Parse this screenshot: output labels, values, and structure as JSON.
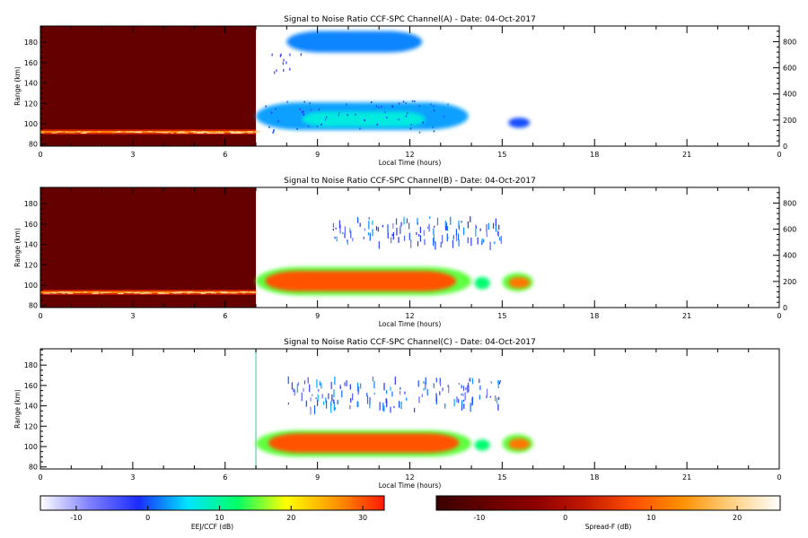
{
  "chart_data": [
    {
      "type": "heatmap",
      "title": "Signal to Noise Ratio CCF-SPC Channel(A) - Date: 04-Oct-2017",
      "xlabel": "Local Time (hours)",
      "ylabel": "Range (km)",
      "xlim": [
        0,
        24
      ],
      "ylim": [
        78,
        196
      ],
      "xticks": [
        "0",
        "3",
        "6",
        "9",
        "12",
        "15",
        "18",
        "21",
        "0"
      ],
      "yticks": [
        "80",
        "100",
        "120",
        "140",
        "160",
        "180"
      ],
      "right_axis": {
        "ylim": [
          0,
          920
        ],
        "ticks": [
          "0",
          "200",
          "400",
          "600",
          "800"
        ]
      },
      "spread_f_background": {
        "x_start": 0,
        "x_end": 7.0,
        "y_start": 78,
        "y_end": 196
      },
      "spread_f_layer": {
        "x_start": 0,
        "x_end": 7.0,
        "range_km": 92,
        "snr_db": 12
      },
      "regions": [
        {
          "x_start": 8.0,
          "x_end": 12.4,
          "y_low": 170,
          "y_high": 191,
          "snr_db": 2
        },
        {
          "x_start": 7.0,
          "x_end": 13.9,
          "y_low": 94,
          "y_high": 121,
          "snr_db": 3
        },
        {
          "x_start": 8.5,
          "x_end": 12.5,
          "y_low": 97,
          "y_high": 112,
          "snr_db": 7
        },
        {
          "x_start": 15.2,
          "x_end": 15.9,
          "y_low": 96,
          "y_high": 106,
          "snr_db": 0
        }
      ]
    },
    {
      "type": "heatmap",
      "title": "Signal to Noise Ratio CCF-SPC Channel(B) - Date: 04-Oct-2017",
      "xlabel": "Local Time (hours)",
      "ylabel": "Range (km)",
      "xlim": [
        0,
        24
      ],
      "ylim": [
        78,
        196
      ],
      "xticks": [
        "0",
        "3",
        "6",
        "9",
        "12",
        "15",
        "18",
        "21",
        "0"
      ],
      "yticks": [
        "80",
        "100",
        "120",
        "140",
        "160",
        "180"
      ],
      "right_axis": {
        "ylim": [
          0,
          920
        ],
        "ticks": [
          "0",
          "200",
          "400",
          "600",
          "800"
        ]
      },
      "spread_f_background": {
        "x_start": 0,
        "x_end": 7.0,
        "y_start": 78,
        "y_end": 196
      },
      "spread_f_layer": {
        "x_start": 0,
        "x_end": 7.0,
        "range_km": 93,
        "snr_db": 12
      },
      "regions": [
        {
          "x_start": 7.0,
          "x_end": 14.0,
          "y_low": 90,
          "y_high": 118,
          "snr_db": 15
        },
        {
          "x_start": 7.3,
          "x_end": 13.5,
          "y_low": 94,
          "y_high": 114,
          "snr_db": 30
        },
        {
          "x_start": 14.1,
          "x_end": 14.6,
          "y_low": 96,
          "y_high": 108,
          "snr_db": 12
        },
        {
          "x_start": 15.0,
          "x_end": 16.0,
          "y_low": 94,
          "y_high": 112,
          "snr_db": 15
        },
        {
          "x_start": 15.2,
          "x_end": 15.9,
          "y_low": 97,
          "y_high": 108,
          "snr_db": 28
        }
      ],
      "scatter_band": {
        "x_start": 9.5,
        "x_end": 15.0,
        "y_low": 142,
        "y_high": 168,
        "snr_db": -2
      }
    },
    {
      "type": "heatmap",
      "title": "Signal to Noise Ratio CCF-SPC Channel(C) - Date: 04-Oct-2017",
      "xlabel": "Local Time (hours)",
      "ylabel": "Range (km)",
      "xlim": [
        0,
        24
      ],
      "ylim": [
        78,
        196
      ],
      "xticks": [
        "0",
        "3",
        "6",
        "9",
        "12",
        "15",
        "18",
        "21",
        "0"
      ],
      "yticks": [
        "80",
        "100",
        "120",
        "140",
        "160",
        "180"
      ],
      "start_marker_hour": 7.0,
      "regions": [
        {
          "x_start": 7.0,
          "x_end": 14.0,
          "y_low": 90,
          "y_high": 116,
          "snr_db": 15
        },
        {
          "x_start": 7.4,
          "x_end": 13.6,
          "y_low": 94,
          "y_high": 113,
          "snr_db": 30
        },
        {
          "x_start": 14.1,
          "x_end": 14.6,
          "y_low": 96,
          "y_high": 107,
          "snr_db": 12
        },
        {
          "x_start": 15.0,
          "x_end": 16.0,
          "y_low": 94,
          "y_high": 112,
          "snr_db": 15
        },
        {
          "x_start": 15.2,
          "x_end": 15.9,
          "y_low": 97,
          "y_high": 108,
          "snr_db": 28
        }
      ],
      "scatter_band": {
        "x_start": 8.0,
        "x_end": 15.0,
        "y_low": 138,
        "y_high": 170,
        "snr_db": -2
      }
    }
  ],
  "colorbars": [
    {
      "label": "EEJ/CCF (dB)",
      "range": [
        -15,
        33
      ],
      "ticks": [
        "-10",
        "0",
        "10",
        "20",
        "30"
      ],
      "tick_values": [
        -10,
        0,
        10,
        20,
        30
      ],
      "colors": [
        "#ffffff",
        "#8080ff",
        "#1a2cff",
        "#00e5ff",
        "#00ff66",
        "#ffff00",
        "#ff9900",
        "#ff1a00"
      ]
    },
    {
      "label": "Spread-F (dB)",
      "range": [
        -15,
        25
      ],
      "ticks": [
        "-10",
        "0",
        "10",
        "20"
      ],
      "tick_values": [
        -10,
        0,
        10,
        20
      ],
      "colors": [
        "#3a0000",
        "#660000",
        "#8c0000",
        "#c01800",
        "#ff4d00",
        "#ff9000",
        "#ffd080",
        "#ffffff"
      ]
    }
  ]
}
